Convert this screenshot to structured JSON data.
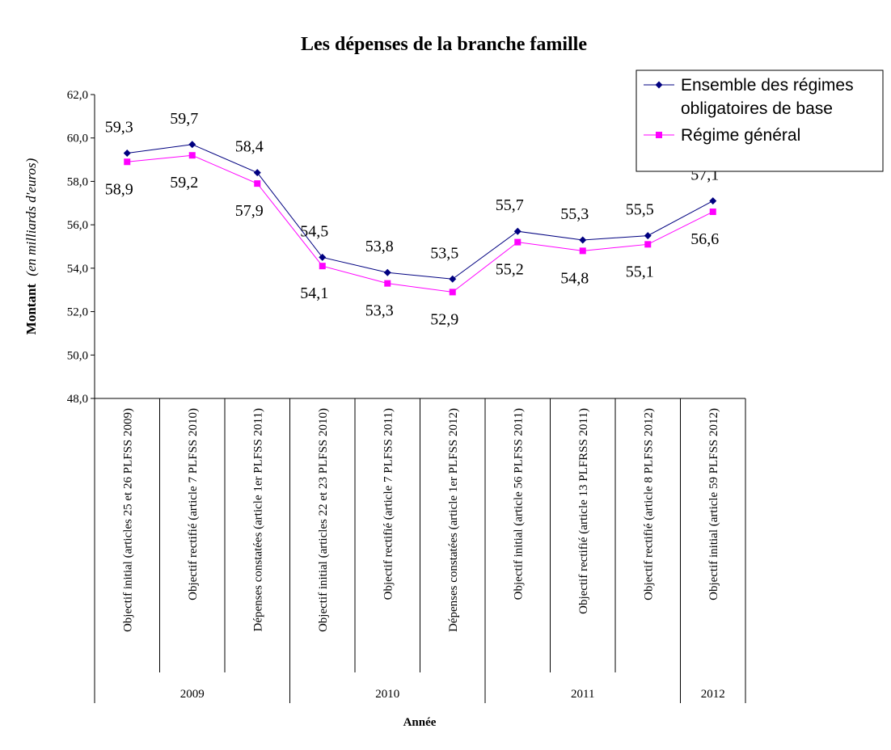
{
  "chart_data": {
    "type": "line",
    "title": "Les dépenses de la branche famille",
    "ylabel": "Montant",
    "ylabel_unit": "(en milliards d'euros)",
    "xlabel": "Année",
    "ylim": [
      48,
      62
    ],
    "yticks": [
      "48,0",
      "50,0",
      "52,0",
      "54,0",
      "56,0",
      "58,0",
      "60,0",
      "62,0"
    ],
    "categories": [
      "Objectif initial (articles 25 et 26 PLFSS 2009)",
      "Objectif rectifié (article 7 PLFSS 2010)",
      "Dépenses constatées (article 1er PLFSS 2011)",
      "Objectif initial (articles 22 et 23 PLFSS 2010)",
      "Objectif rectifié (article 7 PLFSS 2011)",
      "Dépenses constatées (article 1er PLFSS 2012)",
      "Objectif initial (article 56 PLFSS 2011)",
      "Objectif rectifié (article 13 PLFRSS 2011)",
      "Objectif rectifié (article 8  PLFSS 2012)",
      "Objectif initial (article 59 PLFSS 2012)"
    ],
    "groups": [
      {
        "label": "2009",
        "span": 3
      },
      {
        "label": "2010",
        "span": 3
      },
      {
        "label": "2011",
        "span": 3
      },
      {
        "label": "2012",
        "span": 1
      }
    ],
    "series": [
      {
        "name": "Ensemble des régimes obligatoires de base",
        "legend_lines": [
          "Ensemble des régimes",
          "obligatoires de base"
        ],
        "color": "#000080",
        "marker": "diamond",
        "values": [
          59.3,
          59.7,
          58.4,
          54.5,
          53.8,
          53.5,
          55.7,
          55.3,
          55.5,
          57.1
        ],
        "labels": [
          "59,3",
          "59,7",
          "58,4",
          "54,5",
          "53,8",
          "53,5",
          "55,7",
          "55,3",
          "55,5",
          "57,1"
        ]
      },
      {
        "name": "Régime général",
        "legend_lines": [
          "Régime général"
        ],
        "color": "#FF00FF",
        "marker": "square",
        "values": [
          58.9,
          59.2,
          57.9,
          54.1,
          53.3,
          52.9,
          55.2,
          54.8,
          55.1,
          56.6
        ],
        "labels": [
          "58,9",
          "59,2",
          "57,9",
          "54,1",
          "53,3",
          "52,9",
          "55,2",
          "54,8",
          "55,1",
          "56,6"
        ]
      }
    ],
    "legend_position": "top-right",
    "grid": false
  }
}
